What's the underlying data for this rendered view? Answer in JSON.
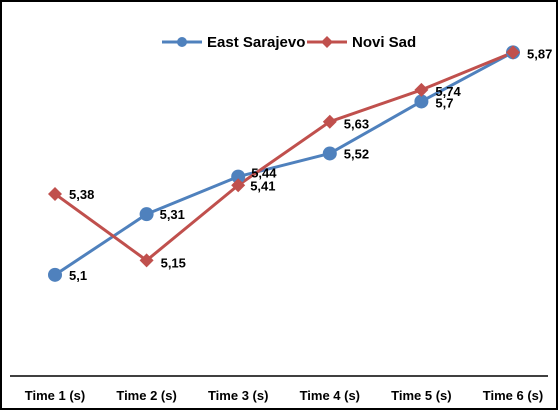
{
  "chart_data": {
    "type": "line",
    "title": "",
    "xlabel": "",
    "ylabel": "",
    "categories": [
      "Time 1 (s)",
      "Time 2 (s)",
      "Time 3 (s)",
      "Time 4 (s)",
      "Time 5 (s)",
      "Time 6 (s)"
    ],
    "series": [
      {
        "name": "East Sarajevo",
        "color": "#4F81BD",
        "marker": "circle",
        "values": [
          5.1,
          5.31,
          5.44,
          5.52,
          5.7,
          5.87
        ],
        "labels": [
          "5,1",
          "5,31",
          "5,44",
          "5,52",
          "5,7",
          "5,87"
        ]
      },
      {
        "name": "Novi  Sad",
        "color": "#C0504D",
        "marker": "diamond",
        "values": [
          5.38,
          5.15,
          5.41,
          5.63,
          5.74,
          5.87
        ],
        "labels": [
          "5,38",
          "5,15",
          "5,41",
          "5,63",
          "5,74",
          ""
        ]
      }
    ],
    "ylim": [
      4.75,
      5.93
    ],
    "grid": false,
    "legend_position": "top"
  }
}
